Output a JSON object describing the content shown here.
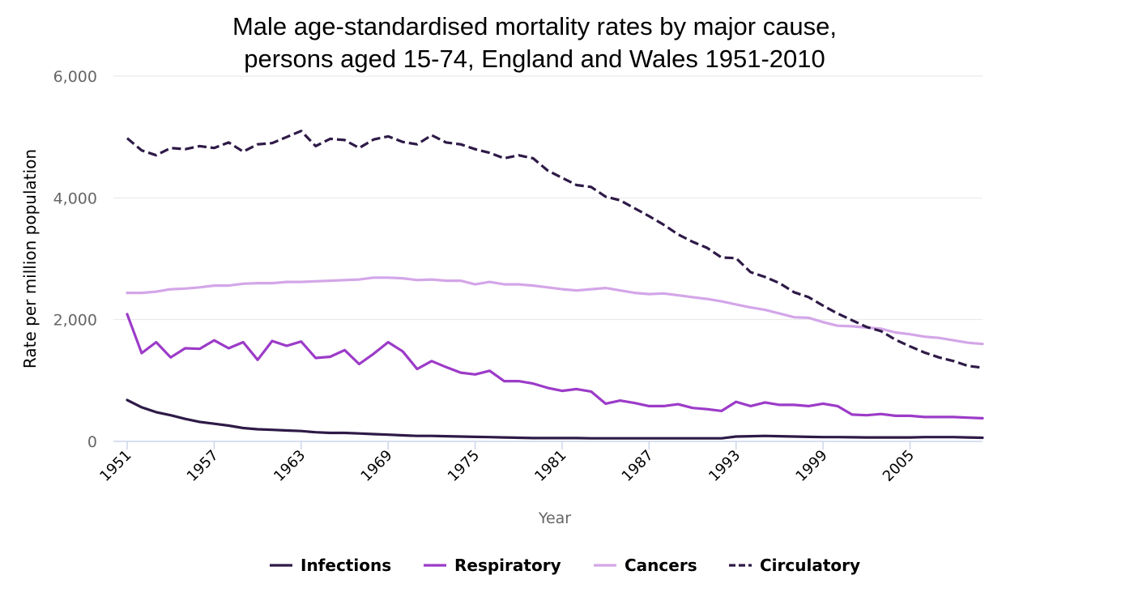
{
  "chart_data": {
    "type": "line",
    "title_lines": [
      "Male age-standardised mortality rates by major cause,",
      "persons aged 15-74, England and Wales 1951-2010"
    ],
    "xlabel": "Year",
    "ylabel": "Rate per million population",
    "x_tick_labels": [
      "1951",
      "1957",
      "1963",
      "1969",
      "1975",
      "1981",
      "1987",
      "1993",
      "1999",
      "2005"
    ],
    "y_tick_labels": [
      "0",
      "2,000",
      "4,000",
      "6,000"
    ],
    "y_ticks": [
      0,
      2000,
      4000,
      6000
    ],
    "xlim": [
      1951,
      2010
    ],
    "ylim": [
      0,
      6000
    ],
    "grid": "horizontal",
    "legend_position": "bottom",
    "x": [
      1951,
      1952,
      1953,
      1954,
      1955,
      1956,
      1957,
      1958,
      1959,
      1960,
      1961,
      1962,
      1963,
      1964,
      1965,
      1966,
      1967,
      1968,
      1969,
      1970,
      1971,
      1972,
      1973,
      1974,
      1975,
      1976,
      1977,
      1978,
      1979,
      1980,
      1981,
      1982,
      1983,
      1984,
      1985,
      1986,
      1987,
      1988,
      1989,
      1990,
      1991,
      1992,
      1993,
      1994,
      1995,
      1996,
      1997,
      1998,
      1999,
      2000,
      2001,
      2002,
      2003,
      2004,
      2005,
      2006,
      2007,
      2008,
      2009,
      2010
    ],
    "series": [
      {
        "name": "Infections",
        "color": "#2e1a47",
        "dash": "solid",
        "values": [
          680,
          560,
          480,
          430,
          370,
          320,
          290,
          260,
          220,
          200,
          190,
          180,
          170,
          150,
          140,
          140,
          130,
          120,
          110,
          100,
          90,
          90,
          85,
          80,
          75,
          70,
          65,
          60,
          55,
          55,
          55,
          55,
          50,
          50,
          50,
          50,
          50,
          50,
          50,
          50,
          50,
          50,
          80,
          85,
          90,
          85,
          80,
          75,
          70,
          70,
          68,
          65,
          65,
          65,
          65,
          70,
          70,
          70,
          65,
          60
        ]
      },
      {
        "name": "Respiratory",
        "color": "#9c3bc8",
        "dash": "solid",
        "values": [
          2090,
          1450,
          1630,
          1380,
          1530,
          1520,
          1660,
          1530,
          1630,
          1340,
          1650,
          1570,
          1640,
          1370,
          1390,
          1500,
          1270,
          1440,
          1630,
          1480,
          1190,
          1320,
          1220,
          1130,
          1100,
          1160,
          990,
          990,
          950,
          880,
          830,
          860,
          820,
          620,
          670,
          630,
          580,
          580,
          610,
          550,
          530,
          500,
          650,
          580,
          640,
          600,
          600,
          580,
          620,
          580,
          440,
          430,
          450,
          420,
          420,
          400,
          400,
          400,
          390,
          380
        ]
      },
      {
        "name": "Cancers",
        "color": "#d3a6e8",
        "dash": "solid",
        "values": [
          2440,
          2440,
          2460,
          2500,
          2510,
          2530,
          2560,
          2560,
          2590,
          2600,
          2600,
          2620,
          2620,
          2630,
          2640,
          2650,
          2660,
          2690,
          2690,
          2680,
          2650,
          2660,
          2640,
          2640,
          2580,
          2620,
          2580,
          2580,
          2560,
          2530,
          2500,
          2480,
          2500,
          2520,
          2480,
          2440,
          2420,
          2430,
          2400,
          2370,
          2340,
          2300,
          2250,
          2200,
          2160,
          2100,
          2040,
          2030,
          1960,
          1900,
          1890,
          1870,
          1850,
          1790,
          1760,
          1720,
          1700,
          1660,
          1620,
          1600
        ]
      },
      {
        "name": "Circulatory",
        "color": "#2e1a47",
        "dash": "dashed",
        "values": [
          4980,
          4780,
          4700,
          4820,
          4800,
          4850,
          4820,
          4910,
          4760,
          4880,
          4900,
          5000,
          5100,
          4850,
          4970,
          4950,
          4820,
          4960,
          5010,
          4920,
          4880,
          5030,
          4910,
          4880,
          4800,
          4740,
          4650,
          4700,
          4650,
          4450,
          4330,
          4210,
          4180,
          4020,
          3960,
          3830,
          3700,
          3560,
          3400,
          3280,
          3180,
          3020,
          3010,
          2780,
          2700,
          2600,
          2450,
          2370,
          2230,
          2100,
          1990,
          1880,
          1810,
          1670,
          1560,
          1460,
          1380,
          1320,
          1240,
          1210
        ]
      }
    ]
  }
}
